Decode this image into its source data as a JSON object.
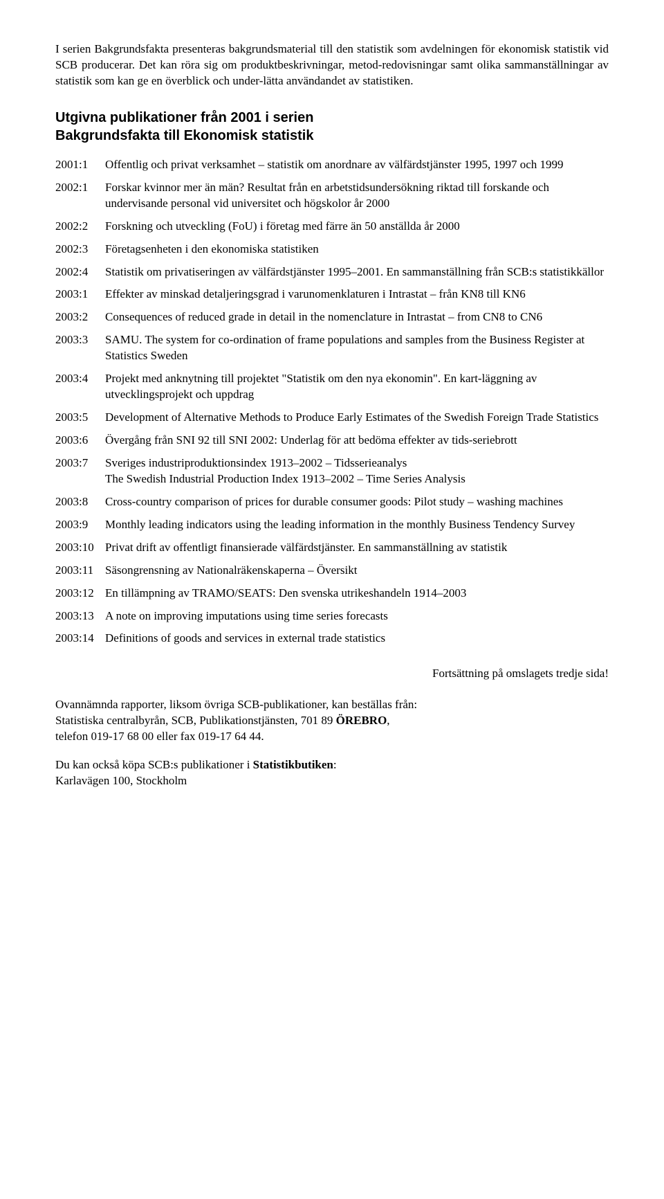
{
  "intro": "I serien Bakgrundsfakta presenteras bakgrundsmaterial till den statistik som avdelningen för ekonomisk statistik vid SCB producerar. Det kan röra sig om produktbeskrivningar, metod-redovisningar samt olika sammanställningar av statistik som kan ge en överblick och under-lätta användandet av statistiken.",
  "heading_line1": "Utgivna publikationer från 2001 i serien",
  "heading_line2": "Bakgrundsfakta till Ekonomisk statistik",
  "publications": [
    {
      "key": "2001:1",
      "desc": "Offentlig och privat verksamhet – statistik om anordnare av välfärdstjänster 1995, 1997 och 1999"
    },
    {
      "key": "2002:1",
      "desc": "Forskar kvinnor mer än män? Resultat från en arbetstidsundersökning riktad till forskande och undervisande personal vid universitet och högskolor år 2000"
    },
    {
      "key": "2002:2",
      "desc": "Forskning och utveckling (FoU) i företag med färre än 50 anställda år 2000"
    },
    {
      "key": "2002:3",
      "desc": "Företagsenheten i den ekonomiska statistiken"
    },
    {
      "key": "2002:4",
      "desc": "Statistik om privatiseringen av välfärdstjänster 1995–2001. En sammanställning från SCB:s statistikkällor"
    },
    {
      "key": "2003:1",
      "desc": "Effekter av minskad detaljeringsgrad i varunomenklaturen i Intrastat – från KN8 till KN6"
    },
    {
      "key": "2003:2",
      "desc": "Consequences of reduced grade in detail in the nomenclature in Intrastat – from CN8 to CN6"
    },
    {
      "key": "2003:3",
      "desc": "SAMU. The system for co-ordination of frame populations and samples from the Business Register at Statistics Sweden"
    },
    {
      "key": "2003:4",
      "desc": "Projekt med anknytning till projektet \"Statistik om den nya ekonomin\". En kart-läggning av utvecklingsprojekt och uppdrag"
    },
    {
      "key": "2003:5",
      "desc": "Development of Alternative Methods to Produce Early Estimates of the Swedish Foreign Trade Statistics"
    },
    {
      "key": "2003:6",
      "desc": "Övergång från SNI 92 till SNI 2002: Underlag för att bedöma effekter av tids-seriebrott"
    },
    {
      "key": "2003:7",
      "desc": "Sveriges industriproduktionsindex 1913–2002 – Tidsserieanalys\nThe Swedish Industrial Production Index 1913–2002 – Time Series Analysis"
    },
    {
      "key": "2003:8",
      "desc": "Cross-country comparison of prices for durable consumer goods: Pilot study – washing machines"
    },
    {
      "key": "2003:9",
      "desc": "Monthly leading indicators using the leading information in the monthly Business Tendency Survey"
    },
    {
      "key": "2003:10",
      "desc": "Privat drift av offentligt finansierade välfärdstjänster. En sammanställning av statistik"
    },
    {
      "key": "2003:11",
      "desc": "Säsongrensning av Nationalräkenskaperna – Översikt"
    },
    {
      "key": "2003:12",
      "desc": "En tillämpning av TRAMO/SEATS: Den svenska utrikeshandeln 1914–2003"
    },
    {
      "key": "2003:13",
      "desc": "A note on improving imputations using time series forecasts"
    },
    {
      "key": "2003:14",
      "desc": "Definitions of goods and services in external trade statistics"
    }
  ],
  "continuation": "Fortsättning på omslagets tredje sida!",
  "footer1_plain1": "Ovannämnda rapporter, liksom övriga SCB-publikationer, kan beställas från:",
  "footer1_plain2": "Statistiska centralbyrån, SCB, Publikationstjänsten, 701 89",
  "footer1_bold": "ÖREBRO",
  "footer1_comma": ",",
  "footer1_plain3": "telefon 019-17 68 00 eller fax 019-17 64 44.",
  "footer2_plain": "Du kan också köpa SCB:s publikationer i ",
  "footer2_bold": "Statistikbutiken",
  "footer2_colon": ":",
  "footer2_plain2": "Karlavägen 100, Stockholm"
}
